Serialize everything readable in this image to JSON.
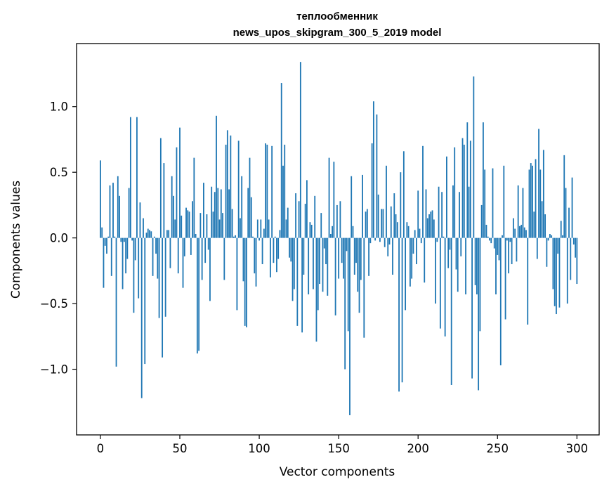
{
  "chart_data": {
    "type": "bar",
    "title": "теплообменник",
    "subtitle": "news_upos_skipgram_300_5_2019 model",
    "xlabel": "Vector components",
    "ylabel": "Components values",
    "xlim": [
      -15,
      314
    ],
    "ylim": [
      -1.5,
      1.48
    ],
    "x_ticks": [
      0,
      50,
      100,
      150,
      200,
      250,
      300
    ],
    "x_tick_labels": [
      "0",
      "50",
      "100",
      "150",
      "200",
      "250",
      "300"
    ],
    "y_ticks": [
      -1.0,
      -0.5,
      0.0,
      0.5,
      1.0
    ],
    "y_tick_labels": [
      "−1.0",
      "−0.5",
      "0.0",
      "0.5",
      "1.0"
    ],
    "grid": false,
    "bar_color": "#1f77b4",
    "series": [
      {
        "values": [
          0.59,
          0.08,
          -0.38,
          -0.06,
          -0.12,
          0.01,
          0.4,
          -0.29,
          0.42,
          0.01,
          -0.98,
          0.47,
          0.32,
          -0.03,
          -0.39,
          -0.03,
          -0.27,
          -0.16,
          0.38,
          0.92,
          -0.02,
          -0.57,
          -0.17,
          0.92,
          -0.46,
          0.27,
          -1.22,
          0.15,
          -0.96,
          0.04,
          0.07,
          0.06,
          0.05,
          -0.29,
          0.01,
          -0.12,
          -0.31,
          -0.61,
          0.76,
          -0.91,
          0.57,
          -0.6,
          0.06,
          0.06,
          -0.23,
          0.47,
          0.32,
          0.14,
          0.69,
          -0.27,
          0.84,
          0.17,
          -0.38,
          -0.14,
          0.23,
          0.21,
          0.2,
          -0.13,
          0.28,
          0.61,
          0.03,
          -0.88,
          -0.86,
          0.19,
          -0.32,
          0.42,
          -0.19,
          0.18,
          -0.09,
          -0.48,
          0.39,
          0.2,
          0.35,
          0.93,
          0.38,
          0.14,
          0.37,
          0.19,
          -0.32,
          0.71,
          0.82,
          0.37,
          0.78,
          0.22,
          0.01,
          0.02,
          -0.55,
          0.74,
          0.15,
          0.47,
          -0.33,
          -0.67,
          -0.68,
          0.38,
          0.61,
          0.31,
          0.01,
          -0.27,
          -0.37,
          0.14,
          -0.02,
          0.14,
          -0.2,
          0.07,
          0.72,
          0.71,
          0.14,
          -0.3,
          0.7,
          -0.19,
          0.01,
          -0.26,
          -0.16,
          0.06,
          1.18,
          0.55,
          0.71,
          0.14,
          0.23,
          -0.15,
          -0.18,
          -0.48,
          -0.39,
          0.34,
          -0.67,
          0.28,
          1.34,
          -0.72,
          -0.28,
          0.26,
          0.44,
          -0.43,
          0.12,
          0.1,
          -0.39,
          0.32,
          -0.79,
          -0.55,
          -0.35,
          0.19,
          -0.41,
          -0.08,
          -0.2,
          -0.44,
          0.61,
          0.03,
          0.09,
          0.58,
          -0.59,
          0.25,
          -0.31,
          0.28,
          -0.19,
          -0.31,
          -1.0,
          -0.1,
          -0.71,
          -1.35,
          0.47,
          0.09,
          -0.28,
          -0.19,
          -0.41,
          -0.57,
          -0.32,
          0.48,
          -0.76,
          0.2,
          0.22,
          -0.29,
          -0.04,
          0.72,
          1.04,
          -0.02,
          0.94,
          0.33,
          -0.03,
          0.22,
          0.22,
          -0.07,
          0.55,
          -0.14,
          -0.05,
          0.24,
          -0.28,
          0.34,
          0.18,
          0.12,
          -1.17,
          0.5,
          -1.1,
          0.66,
          -0.55,
          0.12,
          0.09,
          -0.37,
          -0.31,
          -0.12,
          0.06,
          -0.2,
          0.36,
          0.07,
          -0.04,
          0.7,
          -0.34,
          0.37,
          0.15,
          0.18,
          0.2,
          0.21,
          0.14,
          -0.5,
          -0.03,
          0.39,
          -0.69,
          0.35,
          0.01,
          -0.75,
          0.62,
          -0.23,
          -0.09,
          -1.12,
          0.4,
          0.69,
          -0.24,
          -0.41,
          0.35,
          -0.14,
          0.76,
          0.71,
          -0.43,
          0.88,
          0.39,
          0.74,
          -1.07,
          1.23,
          -0.36,
          -0.43,
          -1.16,
          -0.71,
          0.25,
          0.88,
          0.52,
          0.1,
          0.01,
          -0.02,
          -0.04,
          0.53,
          -0.08,
          -0.43,
          -0.13,
          -0.17,
          -0.97,
          0.02,
          0.55,
          -0.62,
          -0.02,
          -0.27,
          -0.03,
          -0.2,
          0.15,
          0.07,
          -0.18,
          0.4,
          0.09,
          0.1,
          0.38,
          0.08,
          0.06,
          -0.66,
          0.52,
          0.57,
          0.55,
          0.2,
          0.6,
          -0.16,
          0.83,
          0.52,
          0.28,
          0.67,
          0.18,
          -0.22,
          -0.02,
          0.03,
          0.02,
          -0.39,
          -0.52,
          -0.58,
          -0.12,
          -0.53,
          0.13,
          0.02,
          0.63,
          0.38,
          -0.5,
          0.23,
          -0.32,
          0.46,
          -0.05,
          -0.15,
          -0.35
        ]
      }
    ]
  }
}
